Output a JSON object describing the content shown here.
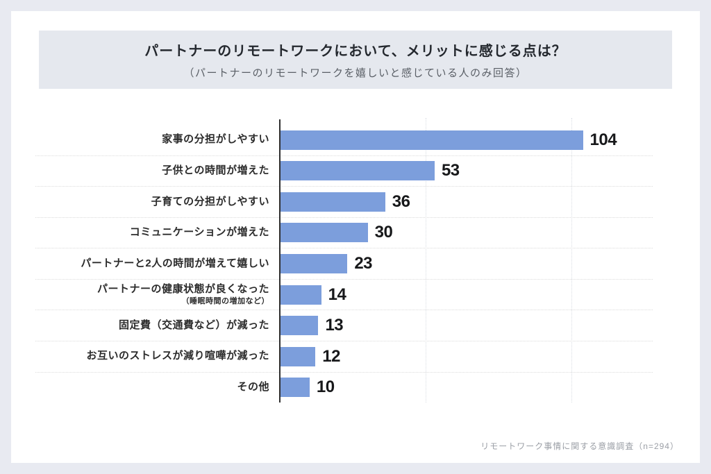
{
  "colors": {
    "outer_bg": "#E8EAF1",
    "card_bg": "#FFFFFF",
    "banner_bg": "#E5E8EE",
    "bar": "#7C9EDC",
    "axis": "#2F2F2F"
  },
  "footer": {
    "source": "リモートワーク事情に関する意識調査（n=294）"
  },
  "chart_data": {
    "type": "bar",
    "orientation": "horizontal",
    "title": "パートナーのリモートワークにおいて、メリットに感じる点は？",
    "subtitle": "（パートナーのリモートワークを嬉しいと感じている人のみ回答）",
    "categories": [
      "家事の分担がしやすい",
      "子供との時間が増えた",
      "子育ての分担がしやすい",
      "コミュニケーションが増えた",
      "パートナーと2人の時間が増えて嬉しい",
      "パートナーの健康状態が良くなった",
      "固定費（交通費など）が減った",
      "お互いのストレスが減り喧嘩が減った",
      "その他"
    ],
    "notes": [
      "",
      "",
      "",
      "",
      "",
      "（睡眠時間の増加など）",
      "",
      "",
      ""
    ],
    "values": [
      104,
      53,
      36,
      30,
      23,
      14,
      13,
      12,
      10
    ],
    "xlabel": "",
    "ylabel": "",
    "xmax": 128,
    "gridlines": [
      50,
      100
    ],
    "grid": "dotted-vertical",
    "legend": "none",
    "value_labels": "outside-end"
  }
}
